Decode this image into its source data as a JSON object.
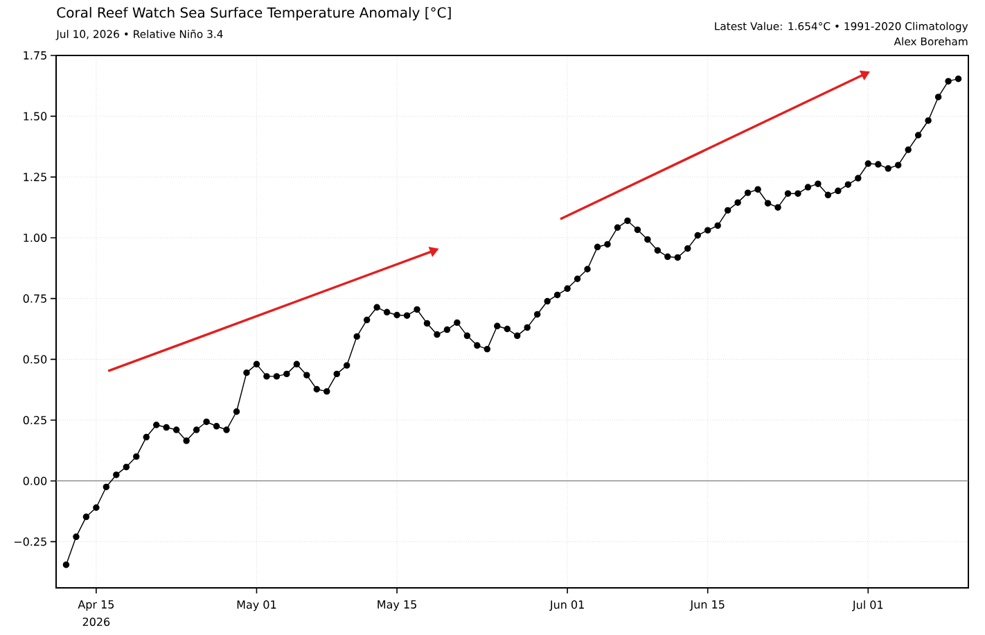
{
  "chart_data": {
    "type": "line",
    "title": "Coral Reef Watch Sea Surface Temperature Anomaly [°C]",
    "subtitle": "Jul 10, 2026 • Relative Niño 3.4",
    "annotations": [
      "Latest Value: 1.654°C • 1991-2020 Climatology",
      "Alex Boreham",
      "2026"
    ],
    "x": [
      "2026-04-12",
      "2026-04-13",
      "2026-04-14",
      "2026-04-15",
      "2026-04-16",
      "2026-04-17",
      "2026-04-18",
      "2026-04-19",
      "2026-04-20",
      "2026-04-21",
      "2026-04-22",
      "2026-04-23",
      "2026-04-24",
      "2026-04-25",
      "2026-04-26",
      "2026-04-27",
      "2026-04-28",
      "2026-04-29",
      "2026-04-30",
      "2026-05-01",
      "2026-05-02",
      "2026-05-03",
      "2026-05-04",
      "2026-05-05",
      "2026-05-06",
      "2026-05-07",
      "2026-05-08",
      "2026-05-09",
      "2026-05-10",
      "2026-05-11",
      "2026-05-12",
      "2026-05-13",
      "2026-05-14",
      "2026-05-15",
      "2026-05-16",
      "2026-05-17",
      "2026-05-18",
      "2026-05-19",
      "2026-05-20",
      "2026-05-21",
      "2026-05-22",
      "2026-05-23",
      "2026-05-24",
      "2026-05-25",
      "2026-05-26",
      "2026-05-27",
      "2026-05-28",
      "2026-05-29",
      "2026-05-30",
      "2026-05-31",
      "2026-06-01",
      "2026-06-02",
      "2026-06-03",
      "2026-06-04",
      "2026-06-05",
      "2026-06-06",
      "2026-06-07",
      "2026-06-08",
      "2026-06-09",
      "2026-06-10",
      "2026-06-11",
      "2026-06-12",
      "2026-06-13",
      "2026-06-14",
      "2026-06-15",
      "2026-06-16",
      "2026-06-17",
      "2026-06-18",
      "2026-06-19",
      "2026-06-20",
      "2026-06-21",
      "2026-06-22",
      "2026-06-23",
      "2026-06-24",
      "2026-06-25",
      "2026-06-26",
      "2026-06-27",
      "2026-06-28",
      "2026-06-29",
      "2026-06-30",
      "2026-07-01",
      "2026-07-02",
      "2026-07-03",
      "2026-07-04",
      "2026-07-05",
      "2026-07-06",
      "2026-07-07",
      "2026-07-08",
      "2026-07-09",
      "2026-07-10"
    ],
    "series": [
      {
        "color": "#000000",
        "values": [
          -0.345,
          -0.23,
          -0.148,
          -0.11,
          -0.025,
          0.025,
          0.057,
          0.1,
          0.18,
          0.23,
          0.22,
          0.21,
          0.165,
          0.21,
          0.243,
          0.225,
          0.21,
          0.285,
          0.445,
          0.48,
          0.43,
          0.43,
          0.44,
          0.48,
          0.435,
          0.377,
          0.368,
          0.44,
          0.475,
          0.594,
          0.662,
          0.714,
          0.694,
          0.682,
          0.68,
          0.705,
          0.648,
          0.602,
          0.622,
          0.651,
          0.597,
          0.557,
          0.542,
          0.637,
          0.625,
          0.597,
          0.631,
          0.685,
          0.739,
          0.765,
          0.791,
          0.831,
          0.871,
          0.962,
          0.973,
          1.042,
          1.07,
          1.033,
          0.993,
          0.948,
          0.922,
          0.919,
          0.956,
          1.01,
          1.031,
          1.05,
          1.113,
          1.145,
          1.185,
          1.199,
          1.142,
          1.125,
          1.182,
          1.182,
          1.208,
          1.222,
          1.176,
          1.193,
          1.219,
          1.245,
          1.305,
          1.302,
          1.285,
          1.299,
          1.362,
          1.422,
          1.482,
          1.579,
          1.644,
          1.654
        ]
      }
    ],
    "xlim": [
      "2026-04-11",
      "2026-07-11"
    ],
    "xticks": [
      {
        "value": "2026-04-15",
        "label": "Apr 15"
      },
      {
        "value": "2026-05-01",
        "label": "May 01"
      },
      {
        "value": "2026-05-15",
        "label": "May 15"
      },
      {
        "value": "2026-06-01",
        "label": "Jun 01"
      },
      {
        "value": "2026-06-15",
        "label": "Jun 15"
      },
      {
        "value": "2026-07-01",
        "label": "Jul 01"
      }
    ],
    "ylim": [
      -0.44,
      1.75
    ],
    "yticks": [
      {
        "value": -0.25,
        "label": "−0.25"
      },
      {
        "value": 0,
        "label": "0.00"
      },
      {
        "value": 0.25,
        "label": "0.25"
      },
      {
        "value": 0.5,
        "label": "0.50"
      },
      {
        "value": 0.75,
        "label": "0.75"
      },
      {
        "value": 1,
        "label": "1.00"
      },
      {
        "value": 1.25,
        "label": "1.25"
      },
      {
        "value": 1.5,
        "label": "1.50"
      },
      {
        "value": 1.75,
        "label": "1.75"
      }
    ],
    "ref_lines": [
      {
        "axis": "y",
        "value": 0,
        "color": "#808080"
      }
    ],
    "grid": true,
    "marker": "circle",
    "line_style": "solid"
  }
}
